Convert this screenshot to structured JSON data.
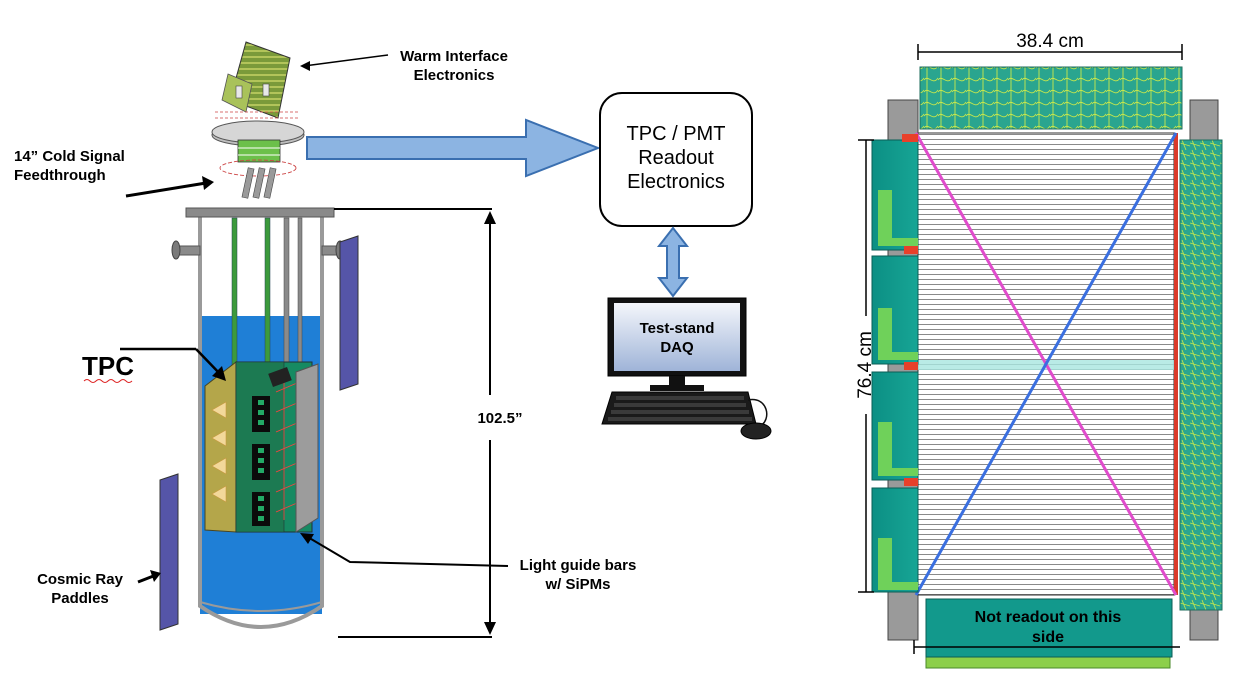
{
  "labels": {
    "warm_interface": "Warm Interface\nElectronics",
    "feedthrough": "14” Cold Signal\nFeedthrough",
    "tpc": "TPC",
    "height": "102.5”",
    "cosmic": "Cosmic Ray\nPaddles",
    "light_guide": "Light guide bars\nw/ SiPMs",
    "readout": "TPC / PMT\nReadout\nElectronics",
    "daq": "Test-stand\nDAQ",
    "width_dim": "38.4 cm",
    "height_dim": "76.4 cm",
    "not_readout": "Not readout on this\nside"
  },
  "colors": {
    "liquid_argon": "#1f7fd6",
    "arrow_fill": "#8cb4e2",
    "arrow_stroke": "#3a6fb0",
    "paddle": "#5555a8",
    "board_teal": "#0f9a8e",
    "board_green": "#6fd15a",
    "wire_pink": "#e04ccc",
    "wire_blue": "#3a6fe0",
    "bottom_box": "#12998c"
  },
  "icons": [
    "monitor-icon",
    "keyboard-icon",
    "mouse-icon",
    "feedthrough-flange-icon",
    "electronics-crate-icon"
  ]
}
